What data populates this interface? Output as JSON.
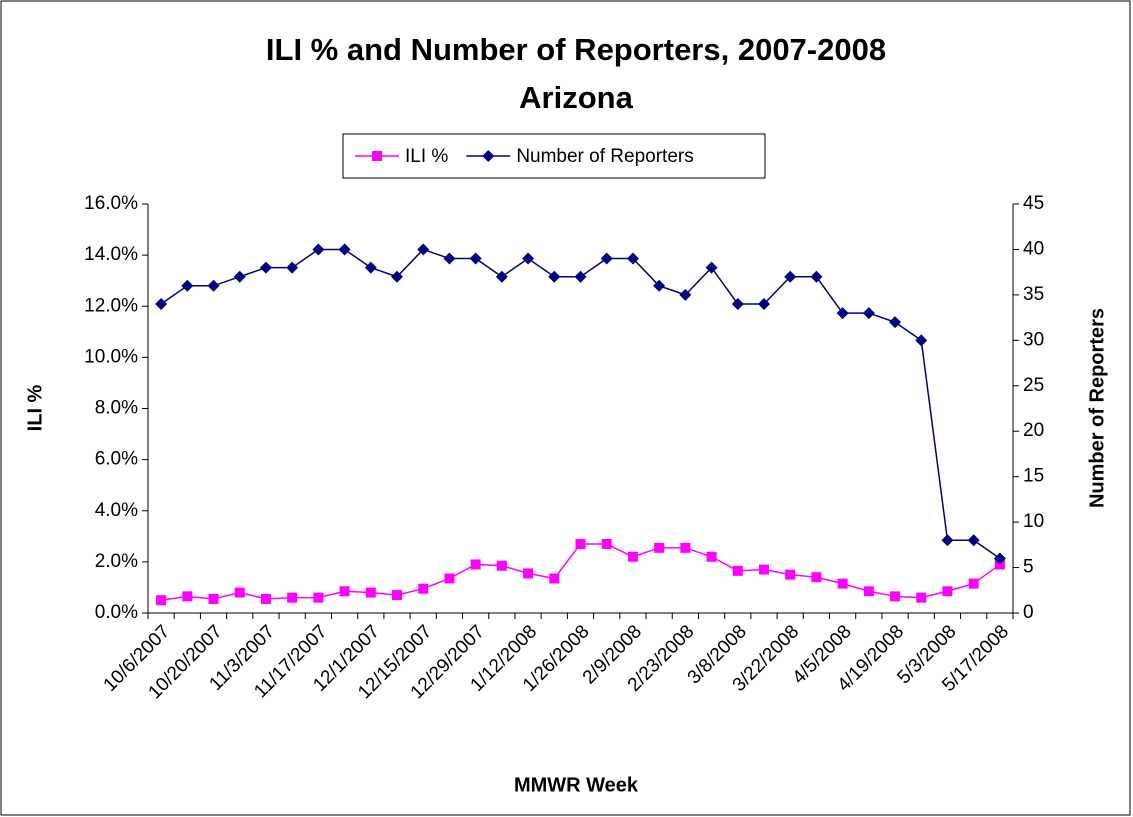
{
  "chart_data": {
    "type": "line",
    "title": "ILI % and Number of Reporters, 2007-2008",
    "subtitle": "Arizona",
    "x_label": "MMWR Week",
    "y_label": "ILI %",
    "y2_label": "Number of Reporters",
    "categories": [
      "10/6/2007",
      null,
      "10/20/2007",
      null,
      "11/3/2007",
      null,
      "11/17/2007",
      null,
      "12/1/2007",
      null,
      "12/15/2007",
      null,
      "12/29/2007",
      null,
      "1/12/2008",
      null,
      "1/26/2008",
      null,
      "2/9/2008",
      null,
      "2/23/2008",
      null,
      "3/8/2008",
      null,
      "3/22/2008",
      null,
      "4/5/2008",
      null,
      "4/19/2008",
      null,
      "5/3/2008",
      null,
      "5/17/2008"
    ],
    "series": [
      {
        "name": "ILI %",
        "color": "#ff00ff",
        "marker": "square",
        "values": [
          0.5,
          0.65,
          0.55,
          0.8,
          0.55,
          0.6,
          0.6,
          0.85,
          0.8,
          0.7,
          0.95,
          1.35,
          1.9,
          1.85,
          1.55,
          1.35,
          2.7,
          2.7,
          2.2,
          2.55,
          2.55,
          2.2,
          1.65,
          1.7,
          1.5,
          1.4,
          1.15,
          0.85,
          0.65,
          0.6,
          0.85,
          1.15,
          1.9
        ]
      },
      {
        "name": "Number of Reporters",
        "color": "#000080",
        "marker": "diamond",
        "axis": "y2",
        "values": [
          34,
          36,
          36,
          37,
          38,
          38,
          40,
          40,
          38,
          37,
          40,
          39,
          39,
          37,
          39,
          37,
          37,
          39,
          39,
          36,
          35,
          38,
          34,
          34,
          37,
          37,
          33,
          33,
          32,
          30,
          8,
          8,
          6
        ]
      }
    ],
    "ylim": [
      0,
      16
    ],
    "yticks": [
      {
        "value": 0,
        "label": "0.0%"
      },
      {
        "value": 2,
        "label": "2.0%"
      },
      {
        "value": 4,
        "label": "4.0%"
      },
      {
        "value": 6,
        "label": "6.0%"
      },
      {
        "value": 8,
        "label": "8.0%"
      },
      {
        "value": 10,
        "label": "10.0%"
      },
      {
        "value": 12,
        "label": "12.0%"
      },
      {
        "value": 14,
        "label": "14.0%"
      },
      {
        "value": 16,
        "label": "16.0%"
      }
    ],
    "y2lim": [
      0,
      45
    ],
    "y2ticks": [
      0,
      5,
      10,
      15,
      20,
      25,
      30,
      35,
      40,
      45
    ],
    "legend": "top",
    "grid": false
  }
}
